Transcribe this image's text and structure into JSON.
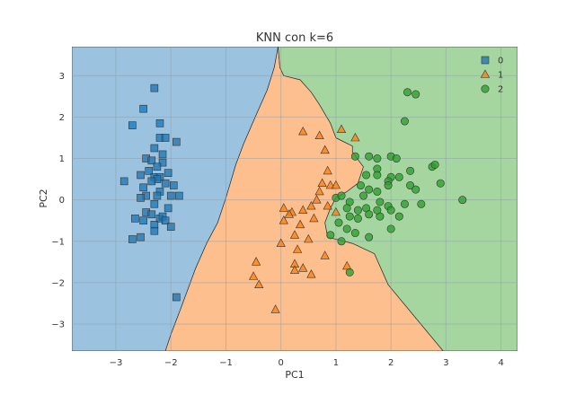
{
  "chart_data": {
    "type": "scatter",
    "title": "KNN con k=6",
    "xlabel": "PC1",
    "ylabel": "PC2",
    "xlim": [
      -3.8,
      4.3
    ],
    "ylim": [
      -3.65,
      3.7
    ],
    "x_ticks": [
      -3,
      -2,
      -1,
      0,
      1,
      2,
      3,
      4
    ],
    "y_ticks": [
      -3,
      -2,
      -1,
      0,
      1,
      2,
      3
    ],
    "grid": true,
    "legend_position": "top-right",
    "colors": {
      "region_0": "#9bc3df",
      "region_1": "#fdbf8d",
      "region_2": "#a6d6a0",
      "class_0": "#1f77b4",
      "class_1": "#ff7f0e",
      "class_2": "#2ca02c",
      "grid": "#8a9aa8"
    },
    "regions": [
      {
        "class": "0",
        "polygon": [
          [
            -3.8,
            3.7
          ],
          [
            -0.05,
            3.7
          ],
          [
            -0.12,
            3.2
          ],
          [
            -0.25,
            2.65
          ],
          [
            -0.45,
            2.05
          ],
          [
            -0.68,
            1.35
          ],
          [
            -0.82,
            0.85
          ],
          [
            -1.0,
            0.05
          ],
          [
            -1.15,
            -0.55
          ],
          [
            -1.35,
            -1.05
          ],
          [
            -1.55,
            -1.65
          ],
          [
            -1.8,
            -2.55
          ],
          [
            -2.0,
            -3.25
          ],
          [
            -2.1,
            -3.65
          ],
          [
            -3.8,
            -3.65
          ]
        ]
      },
      {
        "class": "1",
        "polygon": [
          [
            -0.05,
            3.7
          ],
          [
            -0.02,
            3.2
          ],
          [
            0.05,
            3.0
          ],
          [
            0.35,
            2.9
          ],
          [
            0.55,
            2.6
          ],
          [
            0.7,
            2.3
          ],
          [
            0.9,
            1.85
          ],
          [
            1.0,
            1.5
          ],
          [
            1.3,
            1.3
          ],
          [
            1.3,
            1.15
          ],
          [
            1.5,
            0.8
          ],
          [
            1.4,
            0.4
          ],
          [
            1.2,
            0.2
          ],
          [
            1.0,
            0.05
          ],
          [
            0.9,
            -0.2
          ],
          [
            0.8,
            -0.55
          ],
          [
            0.85,
            -0.9
          ],
          [
            1.3,
            -1.05
          ],
          [
            1.7,
            -1.3
          ],
          [
            1.95,
            -2.05
          ],
          [
            2.45,
            -2.85
          ],
          [
            2.95,
            -3.65
          ],
          [
            -2.1,
            -3.65
          ],
          [
            -2.0,
            -3.25
          ],
          [
            -1.8,
            -2.55
          ],
          [
            -1.55,
            -1.65
          ],
          [
            -1.35,
            -1.05
          ],
          [
            -1.15,
            -0.55
          ],
          [
            -1.0,
            0.05
          ],
          [
            -0.82,
            0.85
          ],
          [
            -0.68,
            1.35
          ],
          [
            -0.45,
            2.05
          ],
          [
            -0.25,
            2.65
          ],
          [
            -0.12,
            3.2
          ]
        ]
      },
      {
        "class": "2",
        "polygon": [
          [
            -0.05,
            3.7
          ],
          [
            4.3,
            3.7
          ],
          [
            4.3,
            -3.65
          ],
          [
            2.95,
            -3.65
          ],
          [
            2.45,
            -2.85
          ],
          [
            1.95,
            -2.05
          ],
          [
            1.7,
            -1.3
          ],
          [
            1.3,
            -1.05
          ],
          [
            0.85,
            -0.9
          ],
          [
            0.8,
            -0.55
          ],
          [
            0.9,
            -0.2
          ],
          [
            1.0,
            0.05
          ],
          [
            1.2,
            0.2
          ],
          [
            1.4,
            0.4
          ],
          [
            1.5,
            0.8
          ],
          [
            1.3,
            1.15
          ],
          [
            1.3,
            1.3
          ],
          [
            1.0,
            1.5
          ],
          [
            0.9,
            1.85
          ],
          [
            0.7,
            2.3
          ],
          [
            0.55,
            2.6
          ],
          [
            0.35,
            2.9
          ],
          [
            0.05,
            3.0
          ],
          [
            -0.02,
            3.2
          ]
        ]
      }
    ],
    "series": [
      {
        "name": "0",
        "marker": "square",
        "points": [
          [
            -2.3,
            2.7
          ],
          [
            -2.5,
            2.2
          ],
          [
            -2.2,
            1.85
          ],
          [
            -2.7,
            1.8
          ],
          [
            -2.2,
            1.5
          ],
          [
            -2.1,
            1.5
          ],
          [
            -1.9,
            1.4
          ],
          [
            -2.3,
            1.25
          ],
          [
            -2.15,
            1.1
          ],
          [
            -2.45,
            1.0
          ],
          [
            -2.35,
            0.95
          ],
          [
            -2.15,
            0.9
          ],
          [
            -2.25,
            0.8
          ],
          [
            -2.4,
            0.7
          ],
          [
            -2.05,
            0.65
          ],
          [
            -2.55,
            0.6
          ],
          [
            -2.3,
            0.55
          ],
          [
            -2.2,
            0.55
          ],
          [
            -2.25,
            0.5
          ],
          [
            -2.85,
            0.45
          ],
          [
            -2.35,
            0.45
          ],
          [
            -2.1,
            0.4
          ],
          [
            -1.95,
            0.35
          ],
          [
            -2.5,
            0.3
          ],
          [
            -2.2,
            0.2
          ],
          [
            -2.45,
            0.1
          ],
          [
            -2.25,
            0.1
          ],
          [
            -2.0,
            0.1
          ],
          [
            -1.85,
            0.1
          ],
          [
            -2.55,
            0.05
          ],
          [
            -2.3,
            -0.1
          ],
          [
            -2.05,
            -0.2
          ],
          [
            -2.45,
            -0.3
          ],
          [
            -2.35,
            -0.35
          ],
          [
            -2.65,
            -0.45
          ],
          [
            -2.2,
            -0.45
          ],
          [
            -2.15,
            -0.4
          ],
          [
            -2.5,
            -0.5
          ],
          [
            -2.1,
            -0.5
          ],
          [
            -2.3,
            -0.6
          ],
          [
            -2.0,
            -0.65
          ],
          [
            -2.3,
            -0.75
          ],
          [
            -2.7,
            -0.95
          ],
          [
            -2.55,
            -0.9
          ],
          [
            -1.9,
            -2.35
          ]
        ]
      },
      {
        "name": "1",
        "marker": "triangle",
        "points": [
          [
            0.4,
            1.65
          ],
          [
            0.7,
            1.55
          ],
          [
            1.1,
            1.7
          ],
          [
            1.35,
            1.5
          ],
          [
            0.8,
            1.2
          ],
          [
            0.85,
            0.7
          ],
          [
            0.75,
            0.4
          ],
          [
            0.9,
            0.35
          ],
          [
            0.7,
            0.2
          ],
          [
            0.05,
            -0.2
          ],
          [
            0.2,
            -0.3
          ],
          [
            0.4,
            -0.25
          ],
          [
            0.55,
            -0.15
          ],
          [
            0.65,
            0.0
          ],
          [
            0.85,
            -0.15
          ],
          [
            1.0,
            -0.3
          ],
          [
            0.05,
            -0.5
          ],
          [
            0.35,
            -0.6
          ],
          [
            0.25,
            -0.85
          ],
          [
            0.5,
            -0.95
          ],
          [
            0.0,
            -1.05
          ],
          [
            0.3,
            -1.2
          ],
          [
            0.25,
            -1.55
          ],
          [
            0.4,
            -1.65
          ],
          [
            -0.45,
            -1.5
          ],
          [
            -0.5,
            -1.85
          ],
          [
            -0.4,
            -2.05
          ],
          [
            0.25,
            -1.7
          ],
          [
            0.55,
            -1.8
          ],
          [
            -0.1,
            -2.65
          ],
          [
            1.2,
            -1.6
          ],
          [
            0.8,
            -1.35
          ],
          [
            1.0,
            0.35
          ],
          [
            0.15,
            -0.35
          ],
          [
            0.6,
            -0.45
          ]
        ]
      },
      {
        "name": "2",
        "marker": "circle",
        "points": [
          [
            2.3,
            2.6
          ],
          [
            2.45,
            2.55
          ],
          [
            2.25,
            1.9
          ],
          [
            1.35,
            1.05
          ],
          [
            1.6,
            1.05
          ],
          [
            1.75,
            1.0
          ],
          [
            2.0,
            1.05
          ],
          [
            2.1,
            1.0
          ],
          [
            2.75,
            0.8
          ],
          [
            2.8,
            0.85
          ],
          [
            1.75,
            0.75
          ],
          [
            2.35,
            0.7
          ],
          [
            1.55,
            0.6
          ],
          [
            1.75,
            0.6
          ],
          [
            2.0,
            0.55
          ],
          [
            2.15,
            0.55
          ],
          [
            1.95,
            0.45
          ],
          [
            2.35,
            0.35
          ],
          [
            2.9,
            0.4
          ],
          [
            1.45,
            0.35
          ],
          [
            1.95,
            0.35
          ],
          [
            1.6,
            0.25
          ],
          [
            1.75,
            0.2
          ],
          [
            2.45,
            0.25
          ],
          [
            3.3,
            0.0
          ],
          [
            1.0,
            0.05
          ],
          [
            1.1,
            0.1
          ],
          [
            1.25,
            -0.05
          ],
          [
            1.5,
            0.1
          ],
          [
            1.2,
            -0.2
          ],
          [
            1.4,
            -0.25
          ],
          [
            1.55,
            -0.2
          ],
          [
            1.8,
            -0.05
          ],
          [
            1.95,
            -0.15
          ],
          [
            2.25,
            -0.1
          ],
          [
            2.55,
            -0.1
          ],
          [
            1.25,
            -0.4
          ],
          [
            1.4,
            -0.45
          ],
          [
            1.6,
            -0.35
          ],
          [
            1.8,
            -0.4
          ],
          [
            1.75,
            -0.25
          ],
          [
            2.0,
            -0.25
          ],
          [
            2.15,
            -0.4
          ],
          [
            1.05,
            -0.55
          ],
          [
            1.2,
            -0.7
          ],
          [
            1.35,
            -0.8
          ],
          [
            1.6,
            -0.9
          ],
          [
            2.0,
            -0.7
          ],
          [
            1.1,
            -1.0
          ],
          [
            1.25,
            -1.75
          ],
          [
            0.9,
            -0.85
          ]
        ]
      }
    ]
  }
}
